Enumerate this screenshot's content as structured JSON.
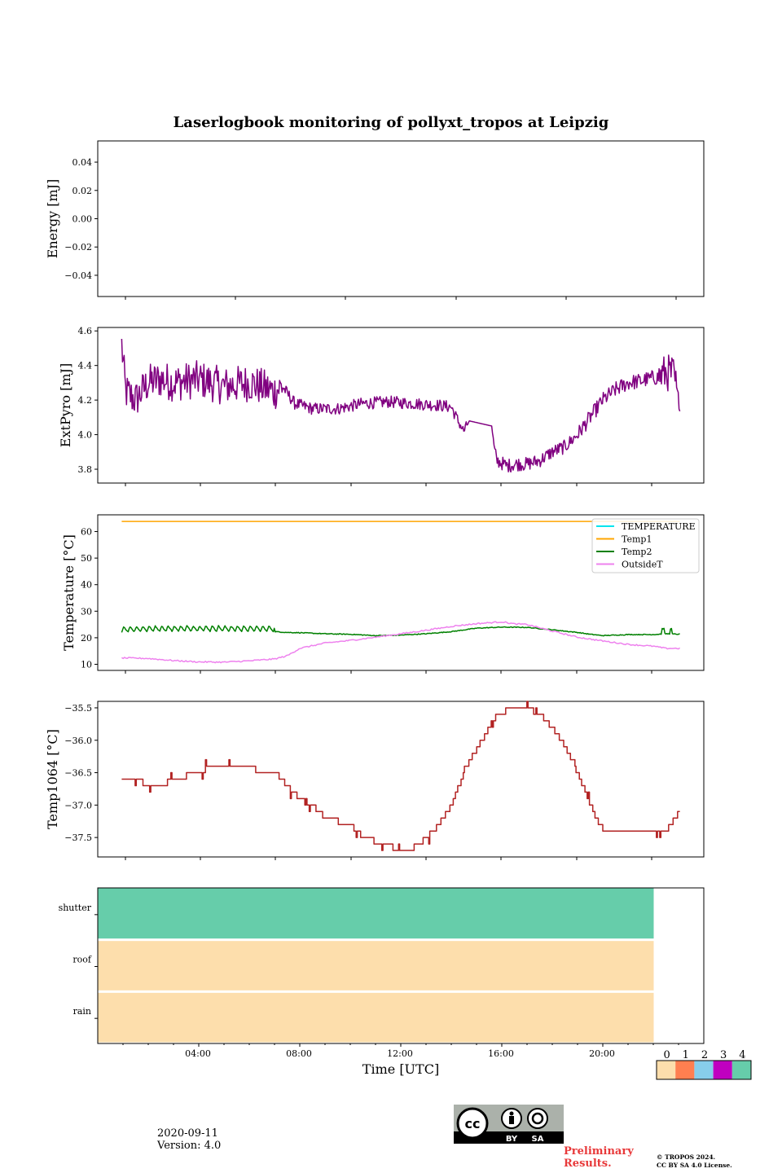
{
  "title": "Laserlogbook monitoring of pollyxt_tropos at Leipzig",
  "footer": {
    "date": "2020-09-11",
    "version": "Version: 4.0",
    "preliminary_line1": "Preliminary",
    "preliminary_line2": "Results.",
    "copyright_line1": "© TROPOS 2024.",
    "copyright_line2": "CC BY SA 4.0 License.",
    "license_badge": {
      "by": "BY",
      "sa": "SA"
    }
  },
  "colors": {
    "energy": "#000000",
    "extpyro": "#800080",
    "temperature": "#00e5ee",
    "temp1": "#ffa500",
    "temp2": "#008000",
    "outsidet": "#ee82ee",
    "temp1064": "#b22222",
    "status0": "#fddeac",
    "status1": "#ff7f50",
    "status2": "#87ceeb",
    "status3": "#c000c0",
    "status4": "#66cdaa"
  },
  "chart_data": [
    {
      "type": "line",
      "id": "energy",
      "ylabel": "Energy [mJ]",
      "ylim": [
        -0.055,
        0.055
      ],
      "yticks": [
        0.04,
        0.02,
        0.0,
        -0.02,
        -0.04
      ],
      "ytick_labels": [
        "0.04",
        "0.02",
        "0.00",
        "−0.02",
        "−0.04"
      ],
      "series": []
    },
    {
      "type": "line",
      "id": "extpyro",
      "ylabel": "ExtPyro [mJ]",
      "ylim": [
        3.72,
        4.62
      ],
      "yticks": [
        4.6,
        4.4,
        4.2,
        4.0,
        3.8
      ],
      "ytick_labels": [
        "4.6",
        "4.4",
        "4.2",
        "4.0",
        "3.8"
      ],
      "series": [
        {
          "name": "ExtPyro",
          "noisy": true,
          "x": [
            0.95,
            1.1,
            1.5,
            2.0,
            2.5,
            3.0,
            4.0,
            5.0,
            6.0,
            7.0,
            7.3,
            7.8,
            8.5,
            9.5,
            10.5,
            11.5,
            12.5,
            13.5,
            14.0,
            14.3,
            14.5,
            14.7,
            15.6,
            15.7,
            15.8,
            16.2,
            16.6,
            17.0,
            17.5,
            18.0,
            18.5,
            19.0,
            19.5,
            20.0,
            20.5,
            21.0,
            21.5,
            22.0,
            22.2,
            22.5,
            22.8,
            23.0,
            23.05
          ],
          "y": [
            4.52,
            4.25,
            4.2,
            4.3,
            4.32,
            4.3,
            4.32,
            4.28,
            4.3,
            4.25,
            4.28,
            4.18,
            4.15,
            4.15,
            4.18,
            4.19,
            4.18,
            4.17,
            4.16,
            4.07,
            4.02,
            4.08,
            4.05,
            3.92,
            3.85,
            3.82,
            3.83,
            3.83,
            3.85,
            3.9,
            3.93,
            4.0,
            4.1,
            4.2,
            4.26,
            4.3,
            4.31,
            4.33,
            4.33,
            4.36,
            4.35,
            4.2,
            4.18
          ]
        }
      ]
    },
    {
      "type": "line",
      "id": "temperature",
      "ylabel": "Temperature [°C]",
      "ylim": [
        7.7,
        66.3
      ],
      "yticks": [
        60,
        50,
        40,
        30,
        20,
        10
      ],
      "ytick_labels": [
        "60",
        "50",
        "40",
        "30",
        "20",
        "10"
      ],
      "legend": "top-right",
      "series": [
        {
          "name": "TEMPERATURE",
          "x": [],
          "y": []
        },
        {
          "name": "Temp1",
          "x": [
            0.95,
            23.05
          ],
          "y": [
            63.8,
            63.8
          ]
        },
        {
          "name": "Temp2",
          "sawtooth": true,
          "x": [
            0.95,
            2.0,
            4.0,
            6.0,
            7.0,
            7.5,
            8.0,
            9.0,
            10.0,
            11.0,
            12.0,
            13.0,
            14.0,
            15.0,
            16.0,
            17.0,
            18.0,
            19.0,
            19.5,
            20.0,
            21.0,
            22.0,
            22.5,
            23.05
          ],
          "y": [
            22.0,
            22.3,
            22.4,
            22.3,
            22.3,
            22.0,
            21.9,
            21.5,
            21.3,
            20.8,
            21.0,
            21.5,
            22.3,
            23.6,
            24.0,
            23.9,
            23.0,
            22.0,
            21.3,
            20.8,
            21.2,
            21.2,
            21.5,
            21.3
          ]
        },
        {
          "name": "OutsideT",
          "x": [
            0.95,
            2.0,
            3.0,
            4.0,
            5.0,
            6.0,
            7.0,
            7.5,
            8.0,
            9.0,
            10.0,
            11.0,
            12.0,
            13.0,
            14.0,
            15.0,
            16.0,
            16.5,
            17.0,
            18.0,
            19.0,
            20.0,
            21.0,
            22.0,
            22.5,
            23.05
          ],
          "y": [
            12.4,
            12.2,
            11.4,
            10.9,
            10.8,
            11.3,
            12.0,
            13.2,
            16.0,
            18.0,
            19.0,
            20.2,
            21.5,
            22.8,
            24.3,
            25.3,
            26.0,
            25.2,
            25.0,
            22.5,
            20.2,
            18.8,
            17.5,
            16.8,
            16.0,
            16.0
          ]
        }
      ]
    },
    {
      "type": "line",
      "id": "temp1064",
      "ylabel": "Temp1064 [°C]",
      "ylim": [
        -37.8,
        -35.4
      ],
      "yticks": [
        -35.5,
        -36.0,
        -36.5,
        -37.0,
        -37.5
      ],
      "ytick_labels": [
        "−35.5",
        "−36.0",
        "−36.5",
        "−37.0",
        "−37.5"
      ],
      "series": [
        {
          "name": "Temp1064",
          "step": true,
          "x": [
            0.95,
            1.5,
            2.0,
            2.5,
            3.0,
            4.0,
            4.5,
            5.5,
            7.0,
            7.3,
            7.7,
            8.0,
            8.5,
            9.0,
            10.0,
            10.5,
            11.3,
            12.0,
            12.3,
            12.7,
            13.0,
            13.5,
            14.0,
            14.3,
            14.6,
            15.8,
            16.5,
            17.0,
            17.5,
            18.0,
            18.5,
            19.0,
            19.5,
            20.0,
            22.0,
            22.5,
            23.05
          ],
          "y": [
            -36.6,
            -36.6,
            -36.7,
            -36.7,
            -36.6,
            -36.5,
            -36.4,
            -36.4,
            -36.5,
            -36.6,
            -36.8,
            -36.9,
            -37.0,
            -37.2,
            -37.3,
            -37.5,
            -37.6,
            -37.7,
            -37.7,
            -37.6,
            -37.5,
            -37.3,
            -37.0,
            -36.7,
            -36.4,
            -35.6,
            -35.5,
            -35.5,
            -35.6,
            -35.8,
            -36.1,
            -36.5,
            -37.0,
            -37.4,
            -37.4,
            -37.4,
            -37.1
          ]
        }
      ]
    },
    {
      "type": "heatmap",
      "id": "status",
      "xlabel": "Time [UTC]",
      "xlim": [
        0,
        24
      ],
      "xticks": [
        4,
        8,
        12,
        16,
        20
      ],
      "xtick_labels": [
        "04:00",
        "08:00",
        "12:00",
        "16:00",
        "20:00"
      ],
      "rows": [
        "shutter",
        "roof",
        "rain"
      ],
      "row_values": [
        4,
        0,
        0
      ],
      "data_end": 22.0,
      "colorbar": {
        "labels": [
          "0",
          "1",
          "2",
          "3",
          "4"
        ]
      }
    }
  ]
}
